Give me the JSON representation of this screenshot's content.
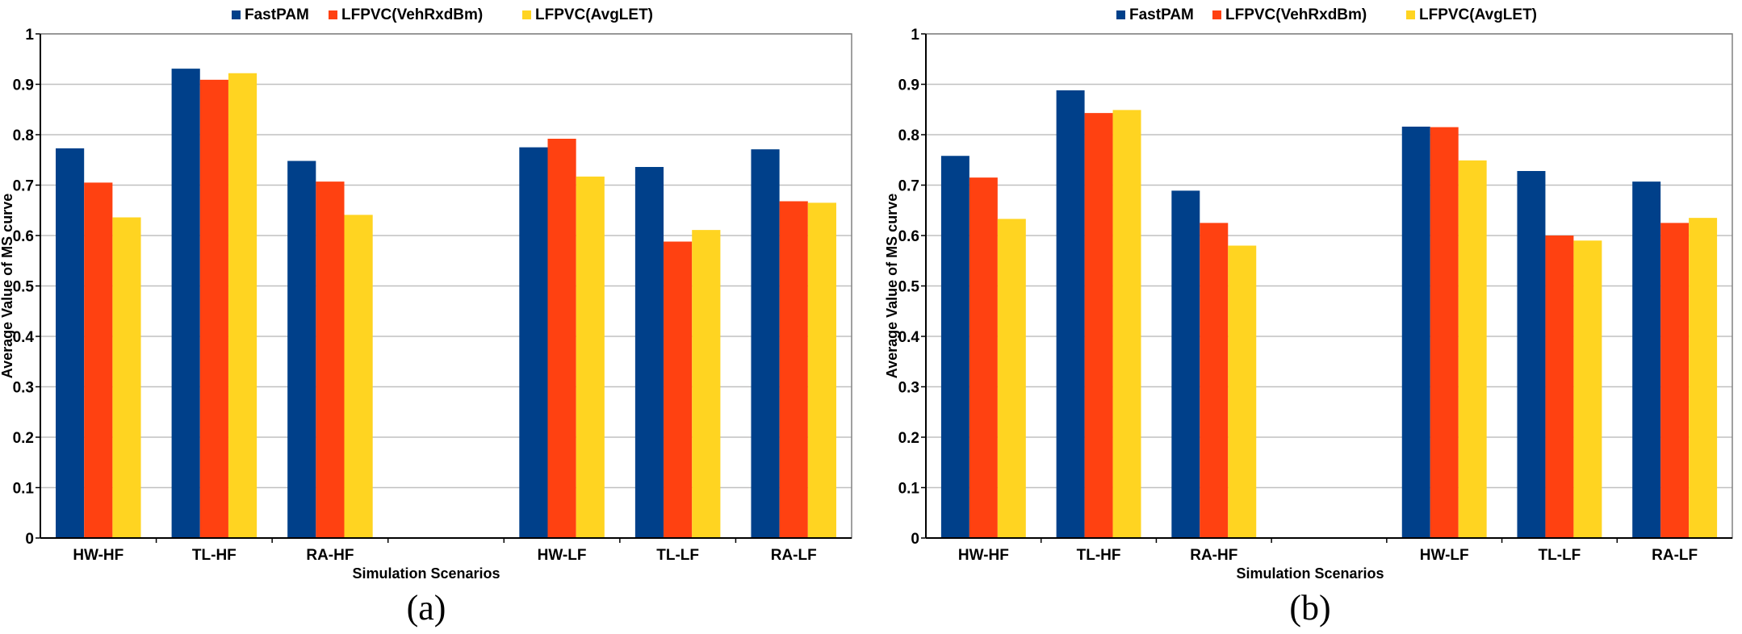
{
  "chart_data": [
    {
      "type": "bar",
      "panel_label": "(a)",
      "title": "",
      "xlabel": "Simulation Scenarios",
      "ylabel": "Average Value of MS curve",
      "ylim": [
        0,
        1
      ],
      "yticks": [
        "0",
        "0.1",
        "0.2",
        "0.3",
        "0.4",
        "0.5",
        "0.6",
        "0.7",
        "0.8",
        "0.9",
        "1"
      ],
      "grid": true,
      "legend_position": "top",
      "categories": [
        "HW-HF",
        "TL-HF",
        "RA-HF",
        "",
        "HW-LF",
        "TL-LF",
        "RA-LF"
      ],
      "series": [
        {
          "name": "FastPAM",
          "color": "#00408A",
          "values": [
            0.773,
            0.931,
            0.748,
            null,
            0.775,
            0.736,
            0.771
          ]
        },
        {
          "name": "LFPVC(VehRxdBm)",
          "color": "#FF4111",
          "values": [
            0.705,
            0.909,
            0.707,
            null,
            0.792,
            0.588,
            0.668
          ]
        },
        {
          "name": "LFPVC(AvgLET)",
          "color": "#FFD421",
          "values": [
            0.636,
            0.922,
            0.641,
            null,
            0.717,
            0.611,
            0.665
          ]
        }
      ]
    },
    {
      "type": "bar",
      "panel_label": "(b)",
      "title": "",
      "xlabel": "Simulation Scenarios",
      "ylabel": "Average Value of MS curve",
      "ylim": [
        0,
        1
      ],
      "yticks": [
        "0",
        "0.1",
        "0.2",
        "0.3",
        "0.4",
        "0.5",
        "0.6",
        "0.7",
        "0.8",
        "0.9",
        "1"
      ],
      "grid": true,
      "legend_position": "top",
      "categories": [
        "HW-HF",
        "TL-HF",
        "RA-HF",
        "",
        "HW-LF",
        "TL-LF",
        "RA-LF"
      ],
      "series": [
        {
          "name": "FastPAM",
          "color": "#00408A",
          "values": [
            0.758,
            0.888,
            0.689,
            null,
            0.816,
            0.728,
            0.707
          ]
        },
        {
          "name": "LFPVC(VehRxdBm)",
          "color": "#FF4111",
          "values": [
            0.715,
            0.843,
            0.625,
            null,
            0.815,
            0.6,
            0.625
          ]
        },
        {
          "name": "LFPVC(AvgLET)",
          "color": "#FFD421",
          "values": [
            0.633,
            0.849,
            0.58,
            null,
            0.749,
            0.59,
            0.635
          ]
        }
      ]
    }
  ]
}
